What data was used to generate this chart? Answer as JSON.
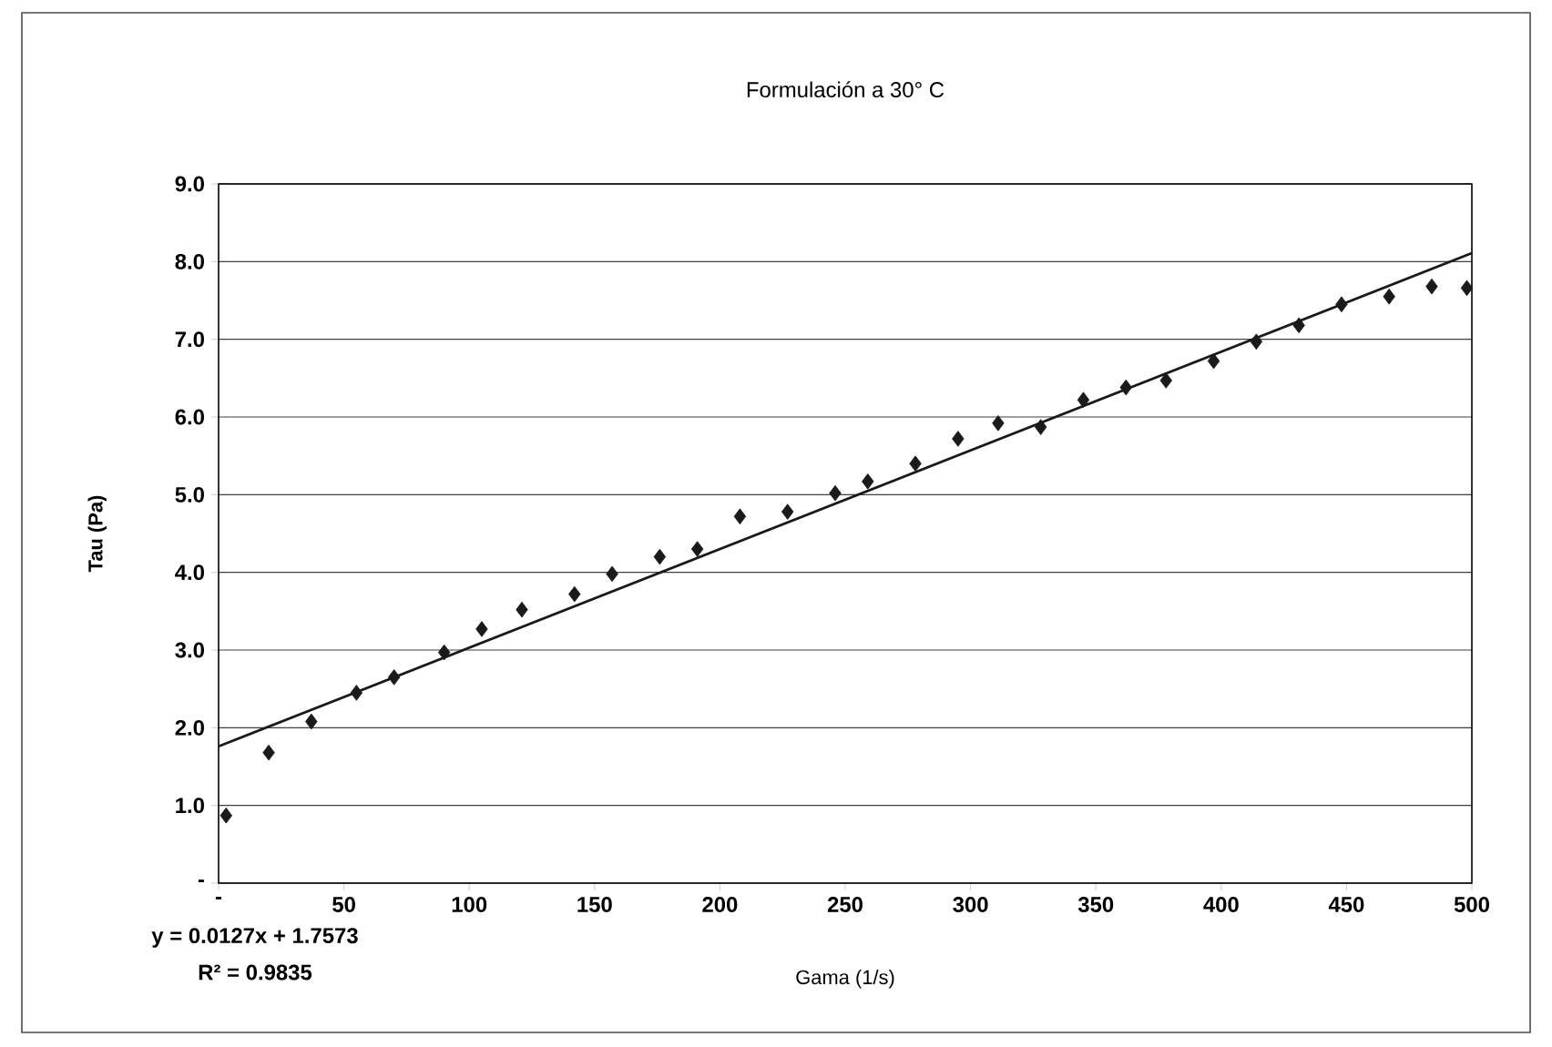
{
  "chart_data": {
    "type": "scatter",
    "title": "Formulación a 30° C",
    "xlabel": "Gama (1/s)",
    "ylabel": "Tau (Pa)",
    "xlim": [
      0,
      500
    ],
    "ylim": [
      0,
      9
    ],
    "xticks": [
      {
        "value": 0,
        "label": "-"
      },
      50,
      100,
      150,
      200,
      250,
      300,
      350,
      400,
      450,
      500
    ],
    "yticks": [
      {
        "value": 0,
        "label": "-"
      },
      {
        "value": 1,
        "label": "1.0"
      },
      {
        "value": 2,
        "label": "2.0"
      },
      {
        "value": 3,
        "label": "3.0"
      },
      {
        "value": 4,
        "label": "4.0"
      },
      {
        "value": 5,
        "label": "5.0"
      },
      {
        "value": 6,
        "label": "6.0"
      },
      {
        "value": 7,
        "label": "7.0"
      },
      {
        "value": 8,
        "label": "8.0"
      },
      {
        "value": 9,
        "label": "9.0"
      }
    ],
    "grid": "y",
    "marker": "diamond",
    "annotations": [
      "y = 0.0127x + 1.7573",
      "R² = 0.9835"
    ],
    "series": [
      {
        "color": "#1a1a1a",
        "x": [
          3,
          20,
          37,
          55,
          70,
          90,
          105,
          121,
          142,
          157,
          176,
          191,
          208,
          227,
          246,
          259,
          278,
          295,
          311,
          328,
          345,
          362,
          378,
          397,
          414,
          431,
          448,
          467,
          484,
          498
        ],
        "values": [
          0.87,
          1.68,
          2.08,
          2.45,
          2.65,
          2.97,
          3.27,
          3.52,
          3.72,
          3.98,
          4.2,
          4.3,
          4.72,
          4.78,
          5.02,
          5.17,
          5.4,
          5.72,
          5.92,
          5.87,
          6.22,
          6.38,
          6.47,
          6.72,
          6.97,
          7.18,
          7.45,
          7.55,
          7.68,
          7.66
        ]
      },
      {
        "type": "line",
        "color": "#1a1a1a",
        "marker": "none",
        "x": [
          0,
          500
        ],
        "values": [
          1.76,
          8.11
        ]
      }
    ]
  }
}
